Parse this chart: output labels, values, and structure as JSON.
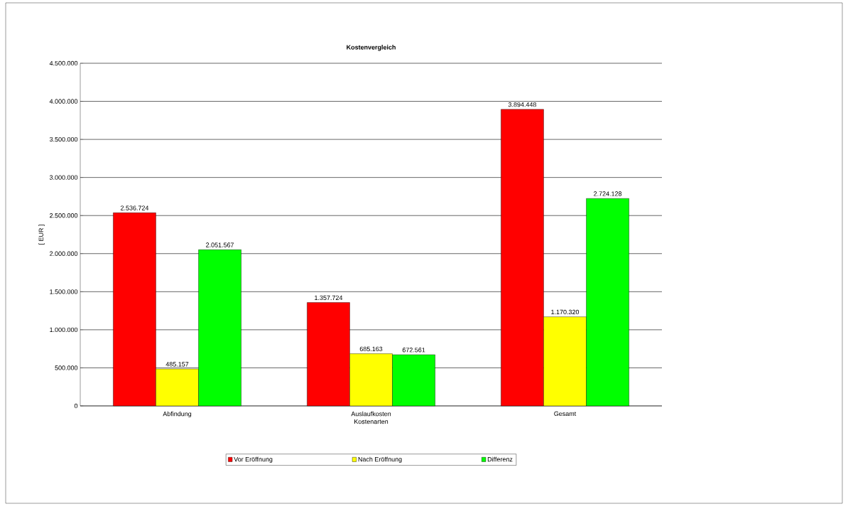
{
  "chart_data": {
    "type": "bar",
    "title": "Kostenvergleich",
    "xlabel": "Kostenarten",
    "ylabel": "[ EUR ]",
    "categories": [
      "Abfindung",
      "Auslaufkosten",
      "Gesamt"
    ],
    "series": [
      {
        "name": "Vor Eröffnung",
        "color": "#ff0000",
        "values": [
          2536724,
          1357724,
          3894448
        ],
        "value_labels": [
          "2.536.724",
          "1.357.724",
          "3.894.448"
        ]
      },
      {
        "name": "Nach Eröffnung",
        "color": "#ffff00",
        "values": [
          485157,
          685163,
          1170320
        ],
        "value_labels": [
          "485.157",
          "685.163",
          "1.170.320"
        ]
      },
      {
        "name": "Differenz",
        "color": "#00ff00",
        "values": [
          2051567,
          672561,
          2724128
        ],
        "value_labels": [
          "2.051.567",
          "672.561",
          "2.724.128"
        ]
      }
    ],
    "ylim": [
      0,
      4500000
    ],
    "yticks": [
      {
        "value": 0,
        "label": "0"
      },
      {
        "value": 500000,
        "label": "500.000"
      },
      {
        "value": 1000000,
        "label": "1.000.000"
      },
      {
        "value": 1500000,
        "label": "1.500.000"
      },
      {
        "value": 2000000,
        "label": "2.000.000"
      },
      {
        "value": 2500000,
        "label": "2.500.000"
      },
      {
        "value": 3000000,
        "label": "3.000.000"
      },
      {
        "value": 3500000,
        "label": "3.500.000"
      },
      {
        "value": 4000000,
        "label": "4.000.000"
      },
      {
        "value": 4500000,
        "label": "4.500.000"
      }
    ],
    "grid": "y",
    "legend": "bottom"
  }
}
